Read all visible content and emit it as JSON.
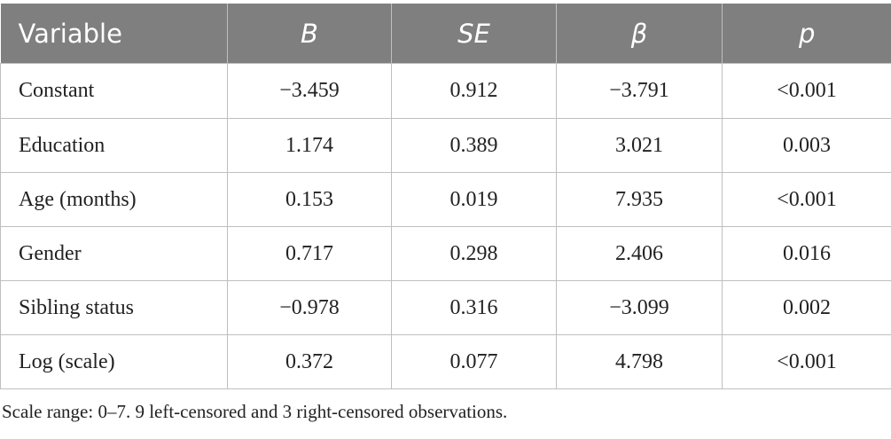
{
  "table": {
    "headers": [
      "Variable",
      "B",
      "SE",
      "β",
      "p"
    ],
    "rows": [
      [
        "Constant",
        "−3.459",
        "0.912",
        "−3.791",
        "<0.001"
      ],
      [
        "Education",
        "1.174",
        "0.389",
        "3.021",
        "0.003"
      ],
      [
        "Age (months)",
        "0.153",
        "0.019",
        "7.935",
        "<0.001"
      ],
      [
        "Gender",
        "0.717",
        "0.298",
        "2.406",
        "0.016"
      ],
      [
        "Sibling status",
        "−0.978",
        "0.316",
        "−3.099",
        "0.002"
      ],
      [
        "Log (scale)",
        "0.372",
        "0.077",
        "4.798",
        "<0.001"
      ]
    ]
  },
  "footnote": "Scale range: 0–7. 9 left-censored and 3 right-censored observations.",
  "colors": {
    "header_bg": "#7f7f7f",
    "header_text": "#ffffff",
    "border": "#bfbfbf",
    "body_text": "#222222"
  }
}
